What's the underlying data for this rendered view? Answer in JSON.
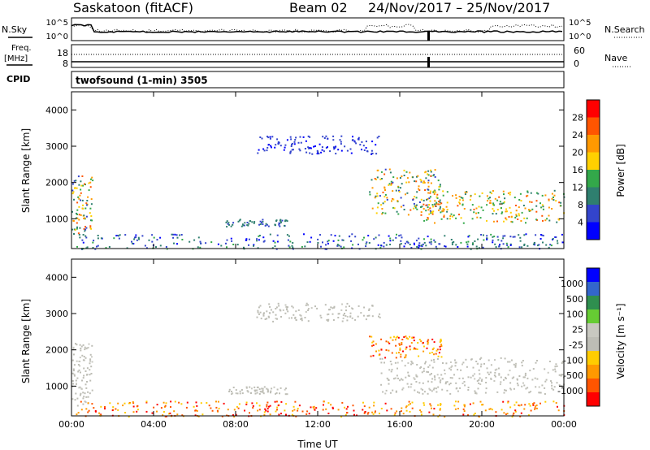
{
  "header": {
    "station": "Saskatoon (fitACF)",
    "beam": "Beam 02",
    "dates": "24/Nov/2017 – 25/Nov/2017"
  },
  "noise_panel": {
    "left_label": "N.Sky",
    "right_label": "N.Search",
    "ticks": [
      "10^5",
      "10^0"
    ]
  },
  "freq_panel": {
    "left_label_top": "Freq.",
    "left_label_bottom": "[MHz]",
    "left_ticks": [
      "18",
      "8"
    ],
    "right_label": "Nave",
    "right_ticks": [
      "60",
      "0"
    ]
  },
  "cpid_panel": {
    "label": "CPID",
    "program": "twofsound (1-min) 3505"
  },
  "colors": {
    "power_scale": [
      "#0000ff",
      "#3344cc",
      "#2f7f6f",
      "#33a84a",
      "#ffd000",
      "#ff9900",
      "#ff5500",
      "#ff0000"
    ],
    "velocity_scale": [
      "#ff0000",
      "#ff5500",
      "#ff9900",
      "#ffcc00",
      "#bdbdb5",
      "#c8c8c0",
      "#66cc33",
      "#2f8f4f",
      "#3366cc",
      "#0000ff"
    ],
    "ground_scatter": "#bdbdb5"
  },
  "chart_data": [
    {
      "type": "heatmap",
      "quantity": "Power",
      "ylabel": "Slant Range [km]",
      "colorbar_label": "Power [dB]",
      "colorbar_ticks": [
        "28",
        "24",
        "20",
        "16",
        "12",
        "8",
        "4"
      ],
      "xlim": [
        0,
        24
      ],
      "ylim": [
        180,
        4500
      ],
      "yticks": [
        "4000",
        "3000",
        "2000",
        "1000"
      ],
      "ytick_values": [
        4000,
        3000,
        2000,
        1000
      ],
      "features": [
        {
          "x": [
            0,
            1.0
          ],
          "y": [
            600,
            2200
          ],
          "level_db": [
            8,
            28
          ]
        },
        {
          "x": [
            0.2,
            24
          ],
          "y": [
            180,
            600
          ],
          "level_db": [
            4,
            16
          ]
        },
        {
          "x": [
            7.5,
            10.5
          ],
          "y": [
            800,
            1000
          ],
          "level_db": [
            8,
            14
          ]
        },
        {
          "x": [
            14.5,
            18
          ],
          "y": [
            1100,
            2400
          ],
          "level_db": [
            8,
            28
          ]
        },
        {
          "x": [
            17,
            24
          ],
          "y": [
            900,
            1800
          ],
          "level_db": [
            12,
            28
          ]
        },
        {
          "x": [
            9,
            15
          ],
          "y": [
            2800,
            3300
          ],
          "level_db": [
            4,
            10
          ]
        }
      ]
    },
    {
      "type": "heatmap",
      "quantity": "Velocity",
      "ylabel": "Slant Range [km]",
      "xlabel": "Time UT",
      "colorbar_label": "Velocity [m s⁻¹]",
      "colorbar_ticks": [
        "1000",
        "500",
        "100",
        "25",
        "-25",
        "-100",
        "-500",
        "-1000"
      ],
      "xlim": [
        0,
        24
      ],
      "ylim": [
        180,
        4500
      ],
      "xticks": [
        "00:00",
        "04:00",
        "08:00",
        "12:00",
        "16:00",
        "20:00",
        "00:00"
      ],
      "xtick_values": [
        0,
        4,
        8,
        12,
        16,
        20,
        24
      ],
      "yticks": [
        "4000",
        "3000",
        "2000",
        "1000"
      ],
      "ytick_values": [
        4000,
        3000,
        2000,
        1000
      ],
      "features": [
        {
          "x": [
            0,
            1.0
          ],
          "y": [
            400,
            2200
          ],
          "velocity": [
            -25,
            25
          ]
        },
        {
          "x": [
            0.2,
            24
          ],
          "y": [
            180,
            600
          ],
          "velocity": [
            -500,
            100
          ]
        },
        {
          "x": [
            7.5,
            10.5
          ],
          "y": [
            800,
            1000
          ],
          "velocity": [
            -25,
            25
          ]
        },
        {
          "x": [
            14.5,
            18
          ],
          "y": [
            1800,
            2400
          ],
          "velocity": [
            -500,
            -100
          ]
        },
        {
          "x": [
            15,
            24
          ],
          "y": [
            800,
            1800
          ],
          "velocity": [
            -25,
            25
          ]
        },
        {
          "x": [
            9,
            15
          ],
          "y": [
            2800,
            3300
          ],
          "velocity": [
            -25,
            25
          ]
        }
      ]
    }
  ]
}
